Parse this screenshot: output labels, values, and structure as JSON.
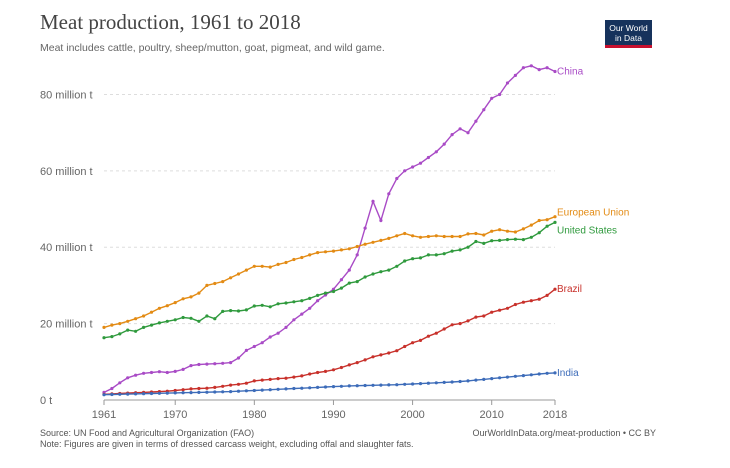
{
  "header": {
    "title": "Meat production, 1961 to 2018",
    "subtitle": "Meat includes cattle, poultry, sheep/mutton, goat, pigmeat, and wild game."
  },
  "logo": {
    "line1": "Our World",
    "line2": "in Data"
  },
  "footer": {
    "source": "Source: UN Food and Agricultural Organization (FAO)",
    "note": "Note: Figures are given in terms of dressed carcass weight, excluding offal and slaughter fats.",
    "credit": "OurWorldInData.org/meat-production • CC BY"
  },
  "chart_data": {
    "type": "line",
    "xlim": [
      1961,
      2018
    ],
    "ylim": [
      0,
      88
    ],
    "xticks": [
      1961,
      1970,
      1980,
      1990,
      2000,
      2010,
      2018
    ],
    "xtick_labels": [
      "1961",
      "1970",
      "1980",
      "1990",
      "2000",
      "2010",
      "2018"
    ],
    "yticks": [
      0,
      20,
      40,
      60,
      80
    ],
    "ytick_labels": [
      "0 t",
      "20 million t",
      "40 million t",
      "60 million t",
      "80 million t"
    ],
    "grid": "horizontal dashed",
    "series": [
      {
        "name": "China",
        "color": "#a94bc6",
        "points": [
          [
            1961,
            2
          ],
          [
            1962,
            3
          ],
          [
            1963,
            4.5
          ],
          [
            1964,
            5.8
          ],
          [
            1965,
            6.5
          ],
          [
            1966,
            7
          ],
          [
            1967,
            7.2
          ],
          [
            1968,
            7.4
          ],
          [
            1969,
            7.2
          ],
          [
            1970,
            7.5
          ],
          [
            1971,
            8
          ],
          [
            1972,
            9
          ],
          [
            1973,
            9.3
          ],
          [
            1974,
            9.4
          ],
          [
            1975,
            9.5
          ],
          [
            1976,
            9.6
          ],
          [
            1977,
            9.8
          ],
          [
            1978,
            11
          ],
          [
            1979,
            13
          ],
          [
            1980,
            14
          ],
          [
            1981,
            15
          ],
          [
            1982,
            16.5
          ],
          [
            1983,
            17.5
          ],
          [
            1984,
            19
          ],
          [
            1985,
            21
          ],
          [
            1986,
            22.5
          ],
          [
            1987,
            24
          ],
          [
            1988,
            26
          ],
          [
            1989,
            27.5
          ],
          [
            1990,
            29
          ],
          [
            1991,
            31.5
          ],
          [
            1992,
            34
          ],
          [
            1993,
            38
          ],
          [
            1994,
            45
          ],
          [
            1995,
            52
          ],
          [
            1996,
            47
          ],
          [
            1997,
            54
          ],
          [
            1998,
            58
          ],
          [
            1999,
            60
          ],
          [
            2000,
            61
          ],
          [
            2001,
            62
          ],
          [
            2002,
            63.5
          ],
          [
            2003,
            65
          ],
          [
            2004,
            67
          ],
          [
            2005,
            69.5
          ],
          [
            2006,
            71
          ],
          [
            2007,
            70
          ],
          [
            2008,
            73
          ],
          [
            2009,
            76
          ],
          [
            2010,
            79
          ],
          [
            2011,
            80
          ],
          [
            2012,
            83
          ],
          [
            2013,
            85
          ],
          [
            2014,
            87
          ],
          [
            2015,
            87.5
          ],
          [
            2016,
            86.5
          ],
          [
            2017,
            87
          ],
          [
            2018,
            86
          ]
        ]
      },
      {
        "name": "European Union",
        "color": "#e38b14",
        "points": [
          [
            1961,
            19
          ],
          [
            1962,
            19.6
          ],
          [
            1963,
            20
          ],
          [
            1964,
            20.6
          ],
          [
            1965,
            21.3
          ],
          [
            1966,
            22
          ],
          [
            1967,
            23
          ],
          [
            1968,
            24
          ],
          [
            1969,
            24.7
          ],
          [
            1970,
            25.5
          ],
          [
            1971,
            26.5
          ],
          [
            1972,
            27
          ],
          [
            1973,
            28
          ],
          [
            1974,
            30
          ],
          [
            1975,
            30.5
          ],
          [
            1976,
            31
          ],
          [
            1977,
            32
          ],
          [
            1978,
            33
          ],
          [
            1979,
            34
          ],
          [
            1980,
            35
          ],
          [
            1981,
            35
          ],
          [
            1982,
            34.8
          ],
          [
            1983,
            35.5
          ],
          [
            1984,
            36
          ],
          [
            1985,
            36.8
          ],
          [
            1986,
            37.3
          ],
          [
            1987,
            38
          ],
          [
            1988,
            38.6
          ],
          [
            1989,
            38.8
          ],
          [
            1990,
            39
          ],
          [
            1991,
            39.3
          ],
          [
            1992,
            39.6
          ],
          [
            1993,
            40.2
          ],
          [
            1994,
            40.8
          ],
          [
            1995,
            41.3
          ],
          [
            1996,
            41.8
          ],
          [
            1997,
            42.3
          ],
          [
            1998,
            43
          ],
          [
            1999,
            43.6
          ],
          [
            2000,
            43
          ],
          [
            2001,
            42.6
          ],
          [
            2002,
            42.8
          ],
          [
            2003,
            43
          ],
          [
            2004,
            42.8
          ],
          [
            2005,
            42.8
          ],
          [
            2006,
            42.8
          ],
          [
            2007,
            43.5
          ],
          [
            2008,
            43.6
          ],
          [
            2009,
            43.2
          ],
          [
            2010,
            44.2
          ],
          [
            2011,
            44.6
          ],
          [
            2012,
            44.2
          ],
          [
            2013,
            44
          ],
          [
            2014,
            44.8
          ],
          [
            2015,
            45.8
          ],
          [
            2016,
            47
          ],
          [
            2017,
            47.2
          ],
          [
            2018,
            48
          ]
        ]
      },
      {
        "name": "United States",
        "color": "#2f9a3d",
        "points": [
          [
            1961,
            16.3
          ],
          [
            1962,
            16.6
          ],
          [
            1963,
            17.3
          ],
          [
            1964,
            18.3
          ],
          [
            1965,
            18
          ],
          [
            1966,
            19
          ],
          [
            1967,
            19.6
          ],
          [
            1968,
            20.2
          ],
          [
            1969,
            20.6
          ],
          [
            1970,
            21
          ],
          [
            1971,
            21.6
          ],
          [
            1972,
            21.4
          ],
          [
            1973,
            20.6
          ],
          [
            1974,
            22
          ],
          [
            1975,
            21.3
          ],
          [
            1976,
            23.2
          ],
          [
            1977,
            23.4
          ],
          [
            1978,
            23.3
          ],
          [
            1979,
            23.6
          ],
          [
            1980,
            24.6
          ],
          [
            1981,
            24.8
          ],
          [
            1982,
            24.4
          ],
          [
            1983,
            25.2
          ],
          [
            1984,
            25.4
          ],
          [
            1985,
            25.7
          ],
          [
            1986,
            26
          ],
          [
            1987,
            26.6
          ],
          [
            1988,
            27.4
          ],
          [
            1989,
            28
          ],
          [
            1990,
            28.4
          ],
          [
            1991,
            29.3
          ],
          [
            1992,
            30.6
          ],
          [
            1993,
            31
          ],
          [
            1994,
            32.2
          ],
          [
            1995,
            33
          ],
          [
            1996,
            33.6
          ],
          [
            1997,
            34
          ],
          [
            1998,
            35
          ],
          [
            1999,
            36.4
          ],
          [
            2000,
            37
          ],
          [
            2001,
            37.2
          ],
          [
            2002,
            38
          ],
          [
            2003,
            38
          ],
          [
            2004,
            38.3
          ],
          [
            2005,
            39
          ],
          [
            2006,
            39.3
          ],
          [
            2007,
            40
          ],
          [
            2008,
            41.5
          ],
          [
            2009,
            41
          ],
          [
            2010,
            41.7
          ],
          [
            2011,
            41.8
          ],
          [
            2012,
            42
          ],
          [
            2013,
            42.1
          ],
          [
            2014,
            42
          ],
          [
            2015,
            42.6
          ],
          [
            2016,
            43.8
          ],
          [
            2017,
            45.5
          ],
          [
            2018,
            46.5
          ]
        ]
      },
      {
        "name": "Brazil",
        "color": "#c8312b",
        "points": [
          [
            1961,
            1.5
          ],
          [
            1962,
            1.6
          ],
          [
            1963,
            1.7
          ],
          [
            1964,
            1.8
          ],
          [
            1965,
            1.9
          ],
          [
            1966,
            2
          ],
          [
            1967,
            2.1
          ],
          [
            1968,
            2.2
          ],
          [
            1969,
            2.3
          ],
          [
            1970,
            2.5
          ],
          [
            1971,
            2.7
          ],
          [
            1972,
            2.9
          ],
          [
            1973,
            3
          ],
          [
            1974,
            3.1
          ],
          [
            1975,
            3.3
          ],
          [
            1976,
            3.6
          ],
          [
            1977,
            3.9
          ],
          [
            1978,
            4.1
          ],
          [
            1979,
            4.4
          ],
          [
            1980,
            5
          ],
          [
            1981,
            5.2
          ],
          [
            1982,
            5.4
          ],
          [
            1983,
            5.6
          ],
          [
            1984,
            5.7
          ],
          [
            1985,
            6
          ],
          [
            1986,
            6.3
          ],
          [
            1987,
            6.8
          ],
          [
            1988,
            7.2
          ],
          [
            1989,
            7.5
          ],
          [
            1990,
            7.9
          ],
          [
            1991,
            8.5
          ],
          [
            1992,
            9.2
          ],
          [
            1993,
            9.8
          ],
          [
            1994,
            10.5
          ],
          [
            1995,
            11.3
          ],
          [
            1996,
            11.8
          ],
          [
            1997,
            12.3
          ],
          [
            1998,
            12.9
          ],
          [
            1999,
            14
          ],
          [
            2000,
            15
          ],
          [
            2001,
            15.6
          ],
          [
            2002,
            16.7
          ],
          [
            2003,
            17.5
          ],
          [
            2004,
            18.6
          ],
          [
            2005,
            19.7
          ],
          [
            2006,
            20
          ],
          [
            2007,
            20.7
          ],
          [
            2008,
            21.7
          ],
          [
            2009,
            22
          ],
          [
            2010,
            23
          ],
          [
            2011,
            23.5
          ],
          [
            2012,
            24
          ],
          [
            2013,
            25
          ],
          [
            2014,
            25.6
          ],
          [
            2015,
            26
          ],
          [
            2016,
            26.4
          ],
          [
            2017,
            27.4
          ],
          [
            2018,
            29
          ]
        ]
      },
      {
        "name": "India",
        "color": "#3d6cb9",
        "points": [
          [
            1961,
            1.4
          ],
          [
            1962,
            1.45
          ],
          [
            1963,
            1.5
          ],
          [
            1964,
            1.55
          ],
          [
            1965,
            1.6
          ],
          [
            1966,
            1.65
          ],
          [
            1967,
            1.7
          ],
          [
            1968,
            1.75
          ],
          [
            1969,
            1.8
          ],
          [
            1970,
            1.85
          ],
          [
            1971,
            1.9
          ],
          [
            1972,
            1.95
          ],
          [
            1973,
            2
          ],
          [
            1974,
            2.05
          ],
          [
            1975,
            2.1
          ],
          [
            1976,
            2.15
          ],
          [
            1977,
            2.2
          ],
          [
            1978,
            2.3
          ],
          [
            1979,
            2.4
          ],
          [
            1980,
            2.5
          ],
          [
            1981,
            2.6
          ],
          [
            1982,
            2.7
          ],
          [
            1983,
            2.8
          ],
          [
            1984,
            2.9
          ],
          [
            1985,
            3
          ],
          [
            1986,
            3.1
          ],
          [
            1987,
            3.2
          ],
          [
            1988,
            3.3
          ],
          [
            1989,
            3.4
          ],
          [
            1990,
            3.5
          ],
          [
            1991,
            3.6
          ],
          [
            1992,
            3.7
          ],
          [
            1993,
            3.75
          ],
          [
            1994,
            3.8
          ],
          [
            1995,
            3.85
          ],
          [
            1996,
            3.9
          ],
          [
            1997,
            3.95
          ],
          [
            1998,
            4
          ],
          [
            1999,
            4.1
          ],
          [
            2000,
            4.2
          ],
          [
            2001,
            4.3
          ],
          [
            2002,
            4.4
          ],
          [
            2003,
            4.5
          ],
          [
            2004,
            4.6
          ],
          [
            2005,
            4.7
          ],
          [
            2006,
            4.85
          ],
          [
            2007,
            5
          ],
          [
            2008,
            5.2
          ],
          [
            2009,
            5.4
          ],
          [
            2010,
            5.6
          ],
          [
            2011,
            5.8
          ],
          [
            2012,
            6
          ],
          [
            2013,
            6.2
          ],
          [
            2014,
            6.4
          ],
          [
            2015,
            6.6
          ],
          [
            2016,
            6.8
          ],
          [
            2017,
            7
          ],
          [
            2018,
            7.1
          ]
        ]
      }
    ]
  }
}
